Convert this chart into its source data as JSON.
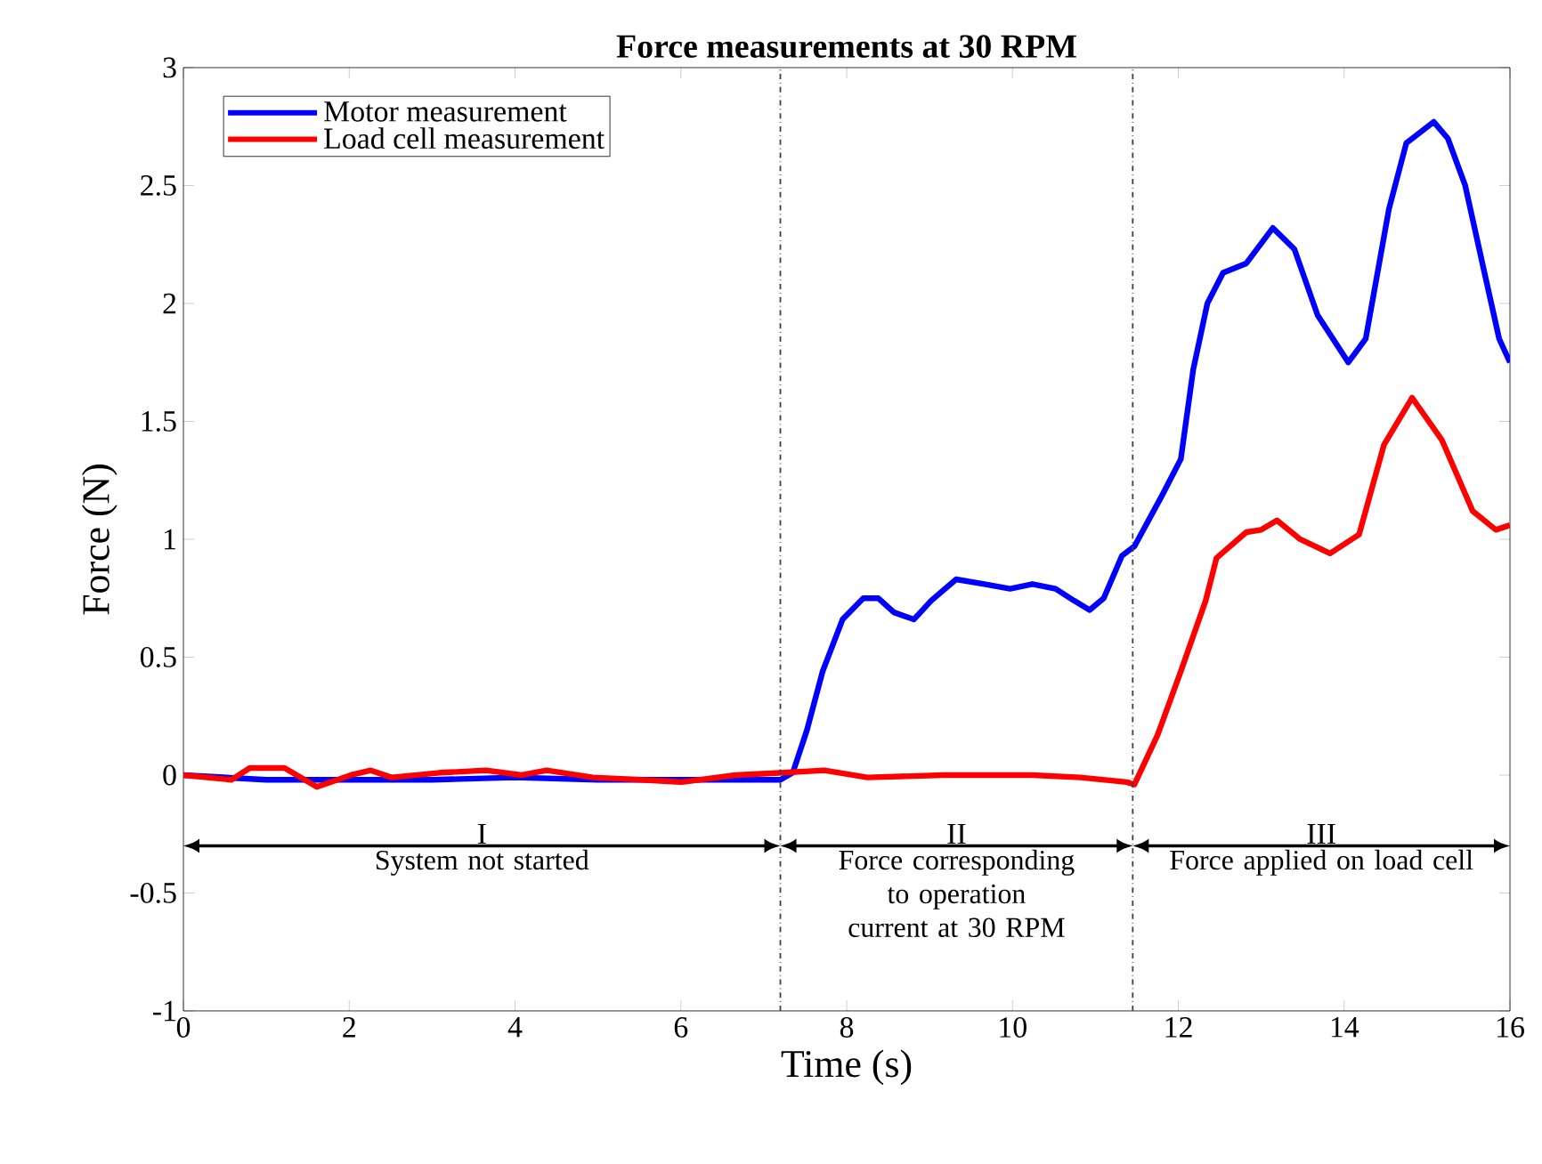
{
  "chart_data": {
    "type": "line",
    "title": "Force measurements at 30 RPM",
    "xlabel": "Time (s)",
    "ylabel": "Force (N)",
    "xlim": [
      0,
      16
    ],
    "ylim": [
      -1,
      3
    ],
    "xticks": [
      0,
      2,
      4,
      6,
      8,
      10,
      12,
      14,
      16
    ],
    "yticks": [
      -1,
      -0.5,
      0,
      0.5,
      1,
      1.5,
      2,
      2.5,
      3
    ],
    "grid": false,
    "legend": "top left",
    "marker": "none",
    "line_style": "solid",
    "series": [
      {
        "name": "Motor measurement",
        "color": "#0000ff",
        "x": [
          0,
          1,
          2,
          3,
          4,
          5,
          6,
          7.2,
          7.35,
          7.52,
          7.71,
          7.95,
          8.2,
          8.38,
          8.57,
          8.81,
          9.02,
          9.32,
          9.66,
          9.97,
          10.24,
          10.52,
          10.74,
          10.93,
          11.1,
          11.32,
          11.47,
          11.81,
          12.03,
          12.18,
          12.35,
          12.54,
          12.82,
          13.14,
          13.4,
          13.68,
          14.05,
          14.26,
          14.54,
          14.75,
          15.08,
          15.25,
          15.46,
          15.68,
          15.87,
          16
        ],
        "values": [
          0,
          -0.02,
          -0.02,
          -0.02,
          -0.01,
          -0.02,
          -0.02,
          -0.02,
          0.01,
          0.19,
          0.44,
          0.66,
          0.75,
          0.75,
          0.69,
          0.66,
          0.74,
          0.83,
          0.81,
          0.79,
          0.81,
          0.79,
          0.74,
          0.7,
          0.75,
          0.93,
          0.97,
          1.19,
          1.34,
          1.72,
          2.0,
          2.13,
          2.17,
          2.32,
          2.23,
          1.95,
          1.75,
          1.85,
          2.4,
          2.68,
          2.77,
          2.7,
          2.5,
          2.15,
          1.85,
          1.75
        ]
      },
      {
        "name": "Load cell measurement",
        "color": "#ff0000",
        "x": [
          0,
          0.58,
          0.8,
          1.22,
          1.61,
          2.02,
          2.26,
          2.51,
          3.09,
          3.65,
          4.08,
          4.38,
          4.94,
          5.52,
          6.01,
          6.66,
          7.24,
          7.73,
          8.25,
          9.17,
          10.24,
          10.82,
          11.38,
          11.47,
          11.75,
          12.03,
          12.33,
          12.46,
          12.82,
          13.0,
          13.19,
          13.47,
          13.83,
          14.18,
          14.48,
          14.82,
          15.18,
          15.55,
          15.83,
          16
        ],
        "values": [
          0,
          -0.02,
          0.03,
          0.03,
          -0.05,
          0,
          0.02,
          -0.01,
          0.01,
          0.02,
          0,
          0.02,
          -0.01,
          -0.02,
          -0.03,
          0,
          0.01,
          0.02,
          -0.01,
          0,
          0,
          -0.01,
          -0.03,
          -0.04,
          0.17,
          0.44,
          0.74,
          0.92,
          1.03,
          1.04,
          1.08,
          1.0,
          0.94,
          1.02,
          1.4,
          1.6,
          1.42,
          1.12,
          1.04,
          1.06
        ]
      }
    ],
    "ref_lines": [
      {
        "axis": "x",
        "value": 7.2,
        "color": "#404040",
        "line_style": "dashdot"
      },
      {
        "axis": "x",
        "value": 11.45,
        "color": "#404040",
        "line_style": "dashdot"
      }
    ],
    "annotations": [
      "I",
      "System not started",
      "II",
      "Force corresponding to operation current at 30 RPM",
      "III",
      "Force applied on load cell"
    ]
  }
}
